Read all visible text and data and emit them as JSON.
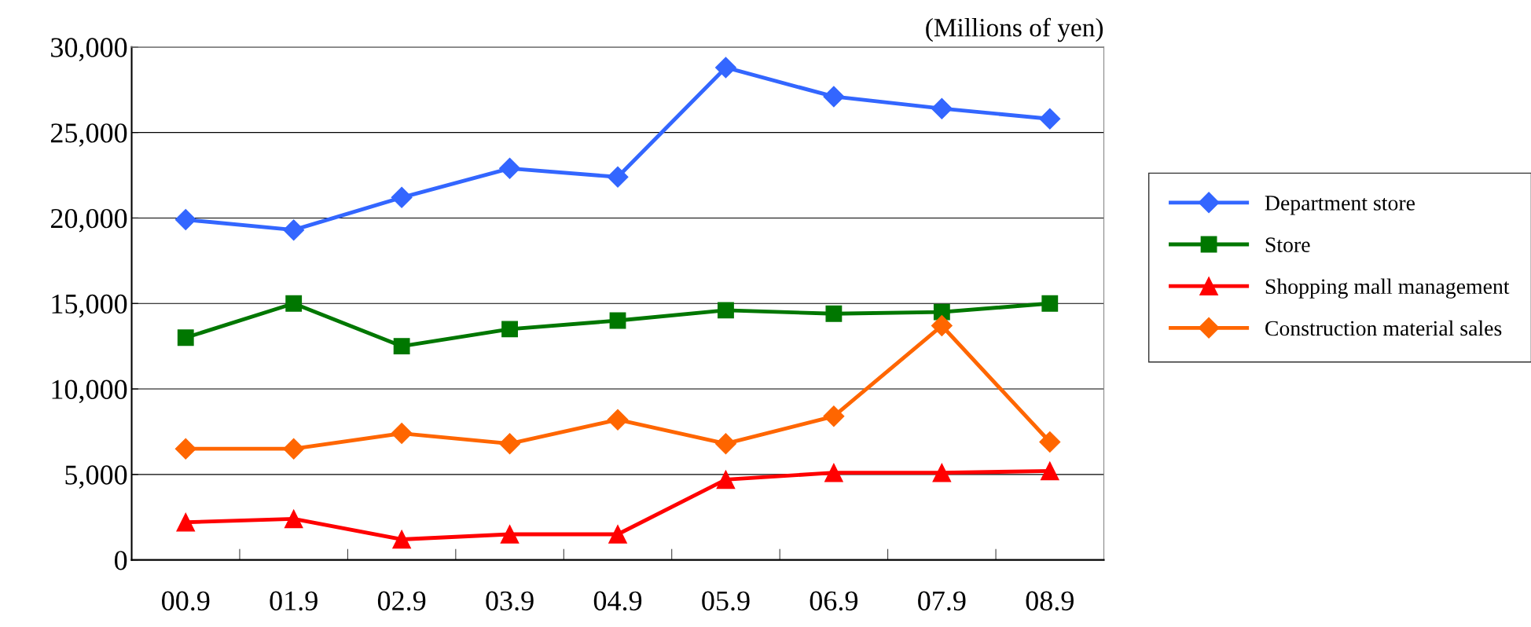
{
  "chart_data": {
    "type": "line",
    "annotations": [
      "(Millions of yen)"
    ],
    "categories": [
      "00.9",
      "01.9",
      "02.9",
      "03.9",
      "04.9",
      "05.9",
      "06.9",
      "07.9",
      "08.9"
    ],
    "series": [
      {
        "name": "Department store",
        "color": "#3366ff",
        "marker": "diamond",
        "values": [
          19900,
          19300,
          21200,
          22900,
          22400,
          28800,
          27100,
          26400,
          25800
        ]
      },
      {
        "name": "Store",
        "color": "#007700",
        "marker": "square",
        "values": [
          13000,
          15000,
          12500,
          13500,
          14000,
          14600,
          14400,
          14500,
          15000
        ]
      },
      {
        "name": "Shopping mall management",
        "color": "#ff0000",
        "marker": "triangle",
        "values": [
          2200,
          2400,
          1200,
          1500,
          1500,
          4700,
          5100,
          5100,
          5200
        ]
      },
      {
        "name": "Construction material sales",
        "color": "#ff6600",
        "marker": "diamond",
        "values": [
          6500,
          6500,
          7400,
          6800,
          8200,
          6800,
          8400,
          13700,
          6900
        ]
      }
    ],
    "ylim": [
      0,
      30000
    ],
    "yticks": [
      0,
      {
        "value": 5000,
        "label": "5,000"
      },
      {
        "value": 10000,
        "label": "10,000"
      },
      {
        "value": 15000,
        "label": "15,000"
      },
      {
        "value": 20000,
        "label": "20,000"
      },
      {
        "value": 25000,
        "label": "25,000"
      },
      {
        "value": 30000,
        "label": "30,000"
      }
    ],
    "grid": "y",
    "legend": "right",
    "line_style": "solid"
  }
}
